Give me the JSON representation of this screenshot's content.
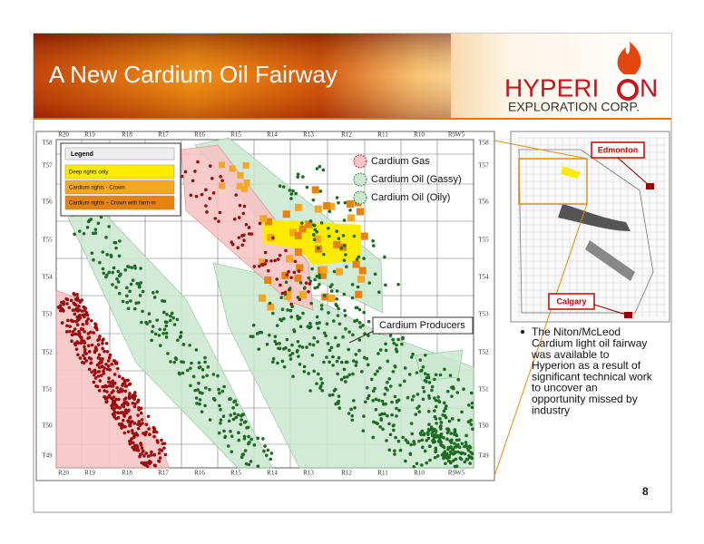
{
  "header": {
    "title": "A New Cardium Oil Fairway",
    "logo_name": "HYPERI",
    "logo_name_end": "N",
    "logo_subtitle": "EXPLORATION CORP."
  },
  "map": {
    "ranges_top": [
      "R20",
      "R19",
      "R18",
      "R17",
      "R16",
      "R15",
      "R14",
      "R13",
      "R12",
      "R11",
      "R10",
      "R9W5"
    ],
    "ranges_bottom": [
      "R20",
      "R19",
      "R18",
      "R17",
      "R16",
      "R15",
      "R14",
      "R13",
      "R12",
      "R11",
      "R10",
      "R9W5"
    ],
    "townships_left": [
      "T58",
      "T57",
      "T56",
      "T55",
      "T54",
      "T53",
      "T52",
      "T51",
      "T50",
      "T49"
    ],
    "townships_right": [
      "T58",
      "T57",
      "T56",
      "T55",
      "T54",
      "T53",
      "T52",
      "T51",
      "T50",
      "T49"
    ],
    "legend": {
      "title": "Legend",
      "items": [
        "Deep rights only",
        "Cardium rights - Crown",
        "Cardium rights – Crown with farm-in"
      ]
    },
    "zones": [
      "Cardium Gas",
      "Cardium Oil (Gassy)",
      "Cardium Oil (Oily)"
    ],
    "callout": "Cardium Producers"
  },
  "inset": {
    "labels": [
      "Edmonton",
      "Calgary"
    ]
  },
  "bullet": [
    "The Niton/McLeod",
    "Cardium light oil fairway",
    "was available to",
    "Hyperion as a result of",
    "significant technical work",
    "to uncover an",
    "opportunity missed by",
    "industry"
  ],
  "page_number": "8"
}
